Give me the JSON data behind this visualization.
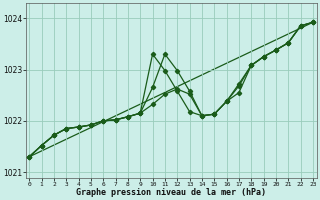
{
  "title": "Graphe pression niveau de la mer (hPa)",
  "bg_color": "#cceee8",
  "grid_color": "#99ccbb",
  "line_color": "#1a5c1a",
  "x_values": [
    0,
    1,
    2,
    3,
    4,
    5,
    6,
    7,
    8,
    9,
    10,
    11,
    12,
    13,
    14,
    15,
    16,
    17,
    18,
    19,
    20,
    21,
    22,
    23
  ],
  "series1": [
    1021.3,
    1021.52,
    1021.72,
    1021.85,
    1021.88,
    1021.92,
    1022.0,
    1022.02,
    1022.08,
    1022.15,
    1022.65,
    1023.3,
    1022.98,
    1022.58,
    1022.1,
    1022.13,
    1022.38,
    1022.68,
    1023.08,
    1023.25,
    1023.38,
    1023.52,
    1023.85,
    1023.92
  ],
  "series2": [
    1021.3,
    1021.52,
    1021.72,
    1021.85,
    1021.88,
    1021.92,
    1022.0,
    1022.02,
    1022.08,
    1022.15,
    1023.3,
    1022.98,
    1022.58,
    1022.18,
    1022.1,
    1022.13,
    1022.38,
    1022.72,
    1023.08,
    1023.25,
    1023.38,
    1023.52,
    1023.85,
    1023.92
  ],
  "series3": [
    1021.3,
    1021.52,
    1021.72,
    1021.85,
    1021.88,
    1021.92,
    1022.0,
    1022.02,
    1022.08,
    1022.15,
    1022.32,
    1022.52,
    1022.62,
    1022.52,
    1022.1,
    1022.13,
    1022.38,
    1022.55,
    1023.08,
    1023.25,
    1023.38,
    1023.52,
    1023.85,
    1023.92
  ],
  "ylim": [
    1020.88,
    1024.3
  ],
  "yticks": [
    1021,
    1022,
    1023,
    1024
  ],
  "xlim": [
    -0.3,
    23.3
  ],
  "xticks": [
    0,
    1,
    2,
    3,
    4,
    5,
    6,
    7,
    8,
    9,
    10,
    11,
    12,
    13,
    14,
    15,
    16,
    17,
    18,
    19,
    20,
    21,
    22,
    23
  ]
}
